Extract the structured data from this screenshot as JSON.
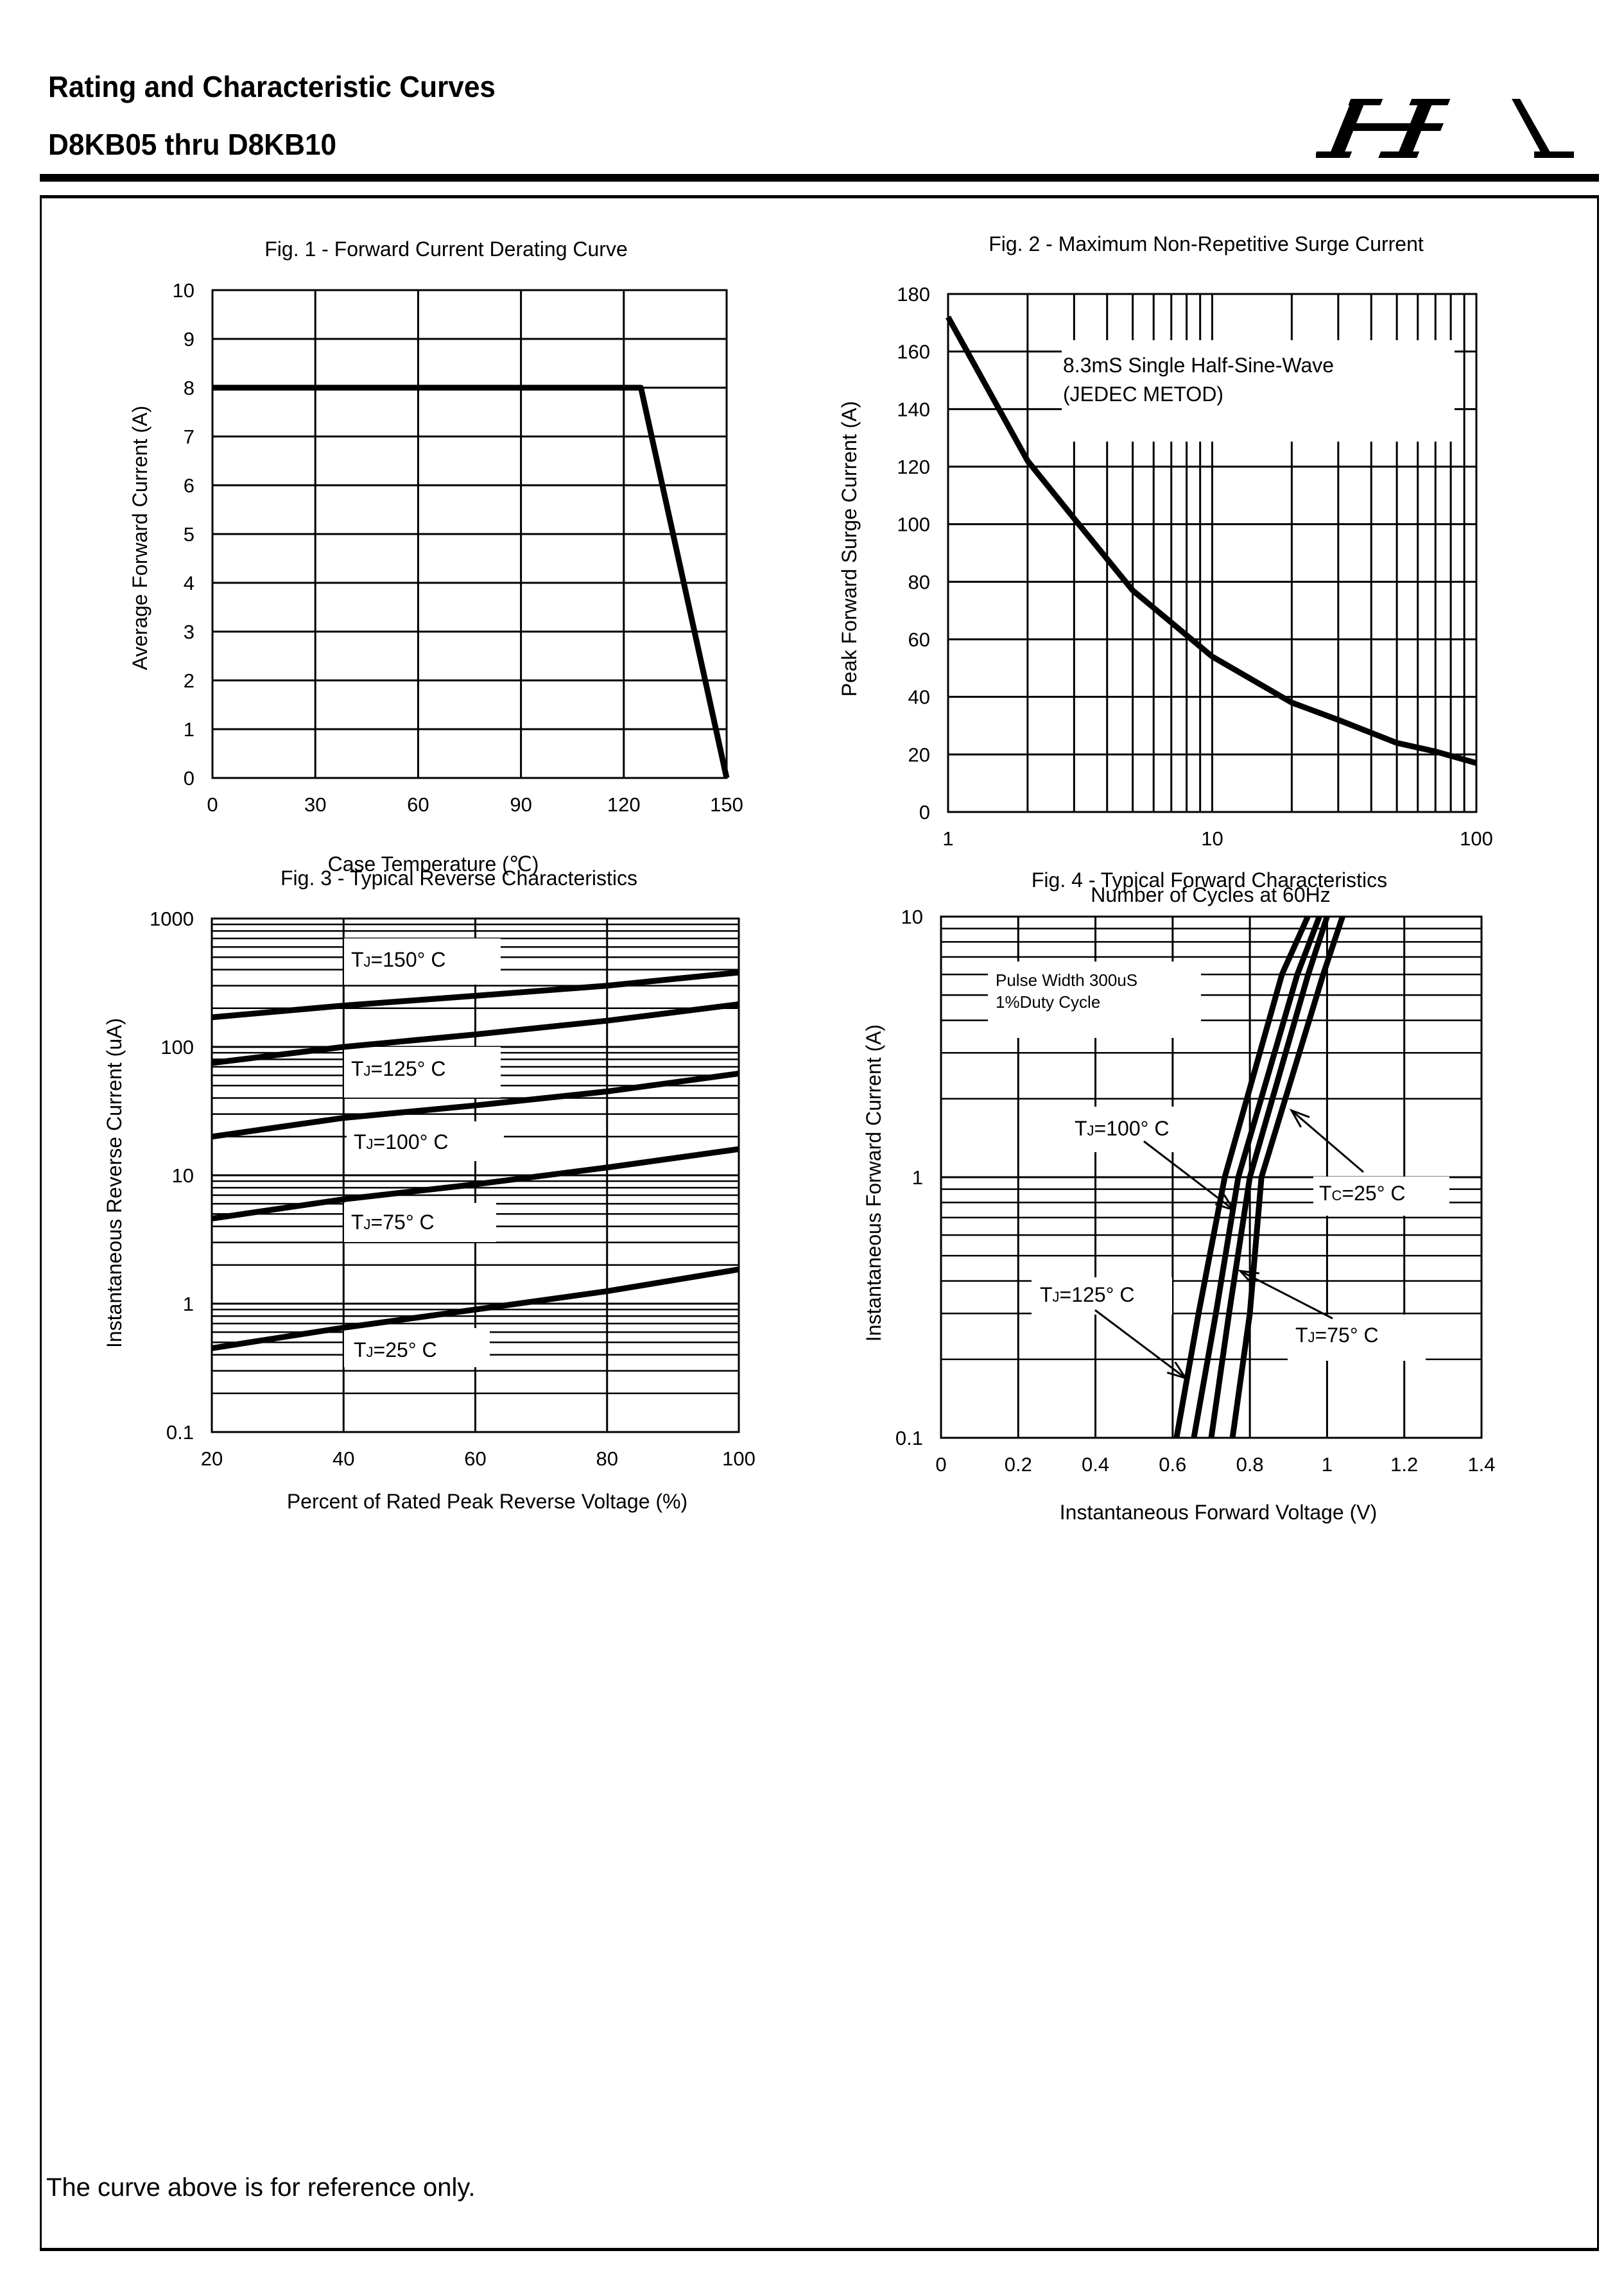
{
  "header": {
    "title": "Rating and Characteristic Curves",
    "part_range": "D8KB05 thru D8KB10",
    "logo_text": "HA"
  },
  "footer": {
    "note": "The curve above is for reference only."
  },
  "chart_data": [
    {
      "type": "line",
      "title": "Fig. 1 - Forward Current Derating Curve",
      "xlabel": "Case Temperature (℃)",
      "ylabel": "Average Forward Current (A)",
      "xlim": [
        0,
        150
      ],
      "ylim": [
        0,
        10
      ],
      "xscale": "linear",
      "yscale": "linear",
      "grid": true,
      "xticks": [
        "0",
        "30",
        "60",
        "90",
        "120",
        "150"
      ],
      "yticks": [
        "0",
        "1",
        "2",
        "3",
        "4",
        "5",
        "6",
        "7",
        "8",
        "9",
        "10"
      ],
      "series": [
        {
          "x": [
            0,
            125,
            150
          ],
          "y": [
            8,
            8,
            0
          ]
        }
      ]
    },
    {
      "type": "line",
      "title": "Fig. 2 - Maximum Non-Repetitive Surge Current",
      "xlabel": "Number of Cycles at 60Hz",
      "ylabel": "Peak Forward Surge Current (A)",
      "xlim": [
        1,
        100
      ],
      "ylim": [
        0,
        180
      ],
      "xscale": "log",
      "yscale": "linear",
      "grid": true,
      "xticks": [
        "1",
        "10",
        "100"
      ],
      "yticks": [
        "0",
        "20",
        "40",
        "60",
        "80",
        "100",
        "120",
        "140",
        "160",
        "180"
      ],
      "annotations": [
        "8.3mS Single Half-Sine-Wave",
        "(JEDEC METOD)"
      ],
      "series": [
        {
          "x": [
            1,
            2,
            3,
            5,
            10,
            20,
            30,
            50,
            70,
            100
          ],
          "y": [
            172,
            122,
            102,
            77,
            54,
            38,
            32,
            24,
            21,
            17
          ]
        }
      ]
    },
    {
      "type": "line",
      "title": "Fig. 3 - Typical Reverse Characteristics",
      "xlabel": "Percent of Rated Peak Reverse Voltage (%)",
      "ylabel": "Instantaneous Reverse Current (uA)",
      "xlim": [
        20,
        100
      ],
      "ylim": [
        0.1,
        1000
      ],
      "xscale": "linear",
      "yscale": "log",
      "grid": true,
      "xticks": [
        "20",
        "40",
        "60",
        "80",
        "100"
      ],
      "yticks": [
        "0.1",
        "1",
        "10",
        "100",
        "1000"
      ],
      "series": [
        {
          "name": "TJ=150° C",
          "label_main": "T",
          "label_sub": "J",
          "label_rest": "=150°  C",
          "x": [
            20,
            40,
            60,
            80,
            100
          ],
          "y": [
            170,
            210,
            250,
            300,
            380
          ]
        },
        {
          "name": "TJ=125° C",
          "label_main": "T",
          "label_sub": "J",
          "label_rest": "=125°  C",
          "x": [
            20,
            40,
            60,
            80,
            100
          ],
          "y": [
            75,
            100,
            125,
            160,
            215
          ]
        },
        {
          "name": "TJ=100° C",
          "label_main": "T",
          "label_sub": "J",
          "label_rest": "=100°  C",
          "x": [
            20,
            40,
            60,
            80,
            100
          ],
          "y": [
            20,
            28,
            35,
            45,
            62
          ]
        },
        {
          "name": "TJ=75° C",
          "label_main": "T",
          "label_sub": "J",
          "label_rest": "=75°  C",
          "x": [
            20,
            40,
            60,
            80,
            100
          ],
          "y": [
            4.6,
            6.5,
            8.5,
            11.5,
            16
          ]
        },
        {
          "name": "TJ=25° C",
          "label_main": "T",
          "label_sub": "J",
          "label_rest": "=25°  C",
          "x": [
            20,
            40,
            60,
            80,
            100
          ],
          "y": [
            0.45,
            0.65,
            0.9,
            1.25,
            1.85
          ]
        }
      ]
    },
    {
      "type": "line",
      "title": "Fig. 4 - Typical Forward Characteristics",
      "xlabel": "Instantaneous Forward Voltage (V)",
      "ylabel": "Instantaneous Forward Current (A)",
      "xlim": [
        0,
        1.4
      ],
      "ylim": [
        0.1,
        10
      ],
      "xscale": "linear",
      "yscale": "log",
      "grid": true,
      "xticks": [
        "0",
        "0.2",
        "0.4",
        "0.6",
        "0.8",
        "1",
        "1.2",
        "1.4"
      ],
      "yticks": [
        "0.1",
        "1",
        "10"
      ],
      "annotations": [
        "Pulse Width 300uS",
        "1%Duty Cycle"
      ],
      "series": [
        {
          "name": "TJ=125° C",
          "label_main": "T",
          "label_sub": "J",
          "label_rest": "=125°  C",
          "x": [
            0.61,
            0.667,
            0.735,
            0.883,
            0.95
          ],
          "y": [
            0.1,
            0.3,
            1,
            6,
            10
          ]
        },
        {
          "name": "TJ=100° C",
          "label_main": "T",
          "label_sub": "J",
          "label_rest": "=100°  C",
          "x": [
            0.655,
            0.712,
            0.77,
            0.923,
            0.98
          ],
          "y": [
            0.1,
            0.3,
            1,
            6,
            10
          ]
        },
        {
          "name": "TJ=75° C",
          "label_main": "T",
          "label_sub": "J",
          "label_rest": "=75°  C",
          "x": [
            0.7,
            0.746,
            0.8,
            0.951,
            1.0
          ],
          "y": [
            0.1,
            0.3,
            1,
            6,
            10
          ]
        },
        {
          "name": "TC=25° C",
          "label_main": "T",
          "label_sub": "C",
          "label_rest": "=25°  C",
          "x": [
            0.755,
            0.8,
            0.83,
            0.99,
            1.04
          ],
          "y": [
            0.1,
            0.3,
            1,
            6,
            10
          ]
        }
      ]
    }
  ]
}
